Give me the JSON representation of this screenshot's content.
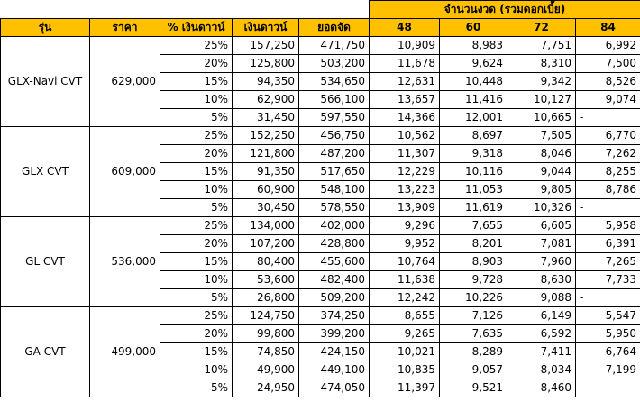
{
  "header": {
    "group_title": "จำนวนงวด (รวมดอกเบี้ย)",
    "columns": [
      "รุ่น",
      "ราคา",
      "% เงินดาวน์",
      "เงินดาวน์",
      "ยอดจัด",
      "48",
      "60",
      "72",
      "84"
    ]
  },
  "models": [
    {
      "name": "GLX-Navi CVT",
      "price": "629,000",
      "rows": [
        {
          "pct": "25%",
          "down": "157,250",
          "fin": "471,750",
          "m48": "10,909",
          "m60": "8,983",
          "m72": "7,751",
          "m84": "6,992"
        },
        {
          "pct": "20%",
          "down": "125,800",
          "fin": "503,200",
          "m48": "11,678",
          "m60": "9,624",
          "m72": "8,310",
          "m84": "7,500"
        },
        {
          "pct": "15%",
          "down": "94,350",
          "fin": "534,650",
          "m48": "12,631",
          "m60": "10,448",
          "m72": "9,342",
          "m84": "8,526"
        },
        {
          "pct": "10%",
          "down": "62,900",
          "fin": "566,100",
          "m48": "13,657",
          "m60": "11,416",
          "m72": "10,127",
          "m84": "9,074"
        },
        {
          "pct": "5%",
          "down": "31,450",
          "fin": "597,550",
          "m48": "14,366",
          "m60": "12,001",
          "m72": "10,665",
          "m84": "-"
        }
      ]
    },
    {
      "name": "GLX CVT",
      "price": "609,000",
      "rows": [
        {
          "pct": "25%",
          "down": "152,250",
          "fin": "456,750",
          "m48": "10,562",
          "m60": "8,697",
          "m72": "7,505",
          "m84": "6,770"
        },
        {
          "pct": "20%",
          "down": "121,800",
          "fin": "487,200",
          "m48": "11,307",
          "m60": "9,318",
          "m72": "8,046",
          "m84": "7,262"
        },
        {
          "pct": "15%",
          "down": "91,350",
          "fin": "517,650",
          "m48": "12,229",
          "m60": "10,116",
          "m72": "9,044",
          "m84": "8,255"
        },
        {
          "pct": "10%",
          "down": "60,900",
          "fin": "548,100",
          "m48": "13,223",
          "m60": "11,053",
          "m72": "9,805",
          "m84": "8,786"
        },
        {
          "pct": "5%",
          "down": "30,450",
          "fin": "578,550",
          "m48": "13,909",
          "m60": "11,619",
          "m72": "10,326",
          "m84": "-"
        }
      ]
    },
    {
      "name": "GL CVT",
      "price": "536,000",
      "rows": [
        {
          "pct": "25%",
          "down": "134,000",
          "fin": "402,000",
          "m48": "9,296",
          "m60": "7,655",
          "m72": "6,605",
          "m84": "5,958"
        },
        {
          "pct": "20%",
          "down": "107,200",
          "fin": "428,800",
          "m48": "9,952",
          "m60": "8,201",
          "m72": "7,081",
          "m84": "6,391"
        },
        {
          "pct": "15%",
          "down": "80,400",
          "fin": "455,600",
          "m48": "10,764",
          "m60": "8,903",
          "m72": "7,960",
          "m84": "7,265"
        },
        {
          "pct": "10%",
          "down": "53,600",
          "fin": "482,400",
          "m48": "11,638",
          "m60": "9,728",
          "m72": "8,630",
          "m84": "7,733"
        },
        {
          "pct": "5%",
          "down": "26,800",
          "fin": "509,200",
          "m48": "12,242",
          "m60": "10,226",
          "m72": "9,088",
          "m84": "-"
        }
      ]
    },
    {
      "name": "GA CVT",
      "price": "499,000",
      "rows": [
        {
          "pct": "25%",
          "down": "124,750",
          "fin": "374,250",
          "m48": "8,655",
          "m60": "7,126",
          "m72": "6,149",
          "m84": "5,547"
        },
        {
          "pct": "20%",
          "down": "99,800",
          "fin": "399,200",
          "m48": "9,265",
          "m60": "7,635",
          "m72": "6,592",
          "m84": "5,950"
        },
        {
          "pct": "15%",
          "down": "74,850",
          "fin": "424,150",
          "m48": "10,021",
          "m60": "8,289",
          "m72": "7,411",
          "m84": "6,764"
        },
        {
          "pct": "10%",
          "down": "49,900",
          "fin": "449,100",
          "m48": "10,835",
          "m60": "9,057",
          "m72": "8,034",
          "m84": "7,199"
        },
        {
          "pct": "5%",
          "down": "24,950",
          "fin": "474,050",
          "m48": "11,397",
          "m60": "9,521",
          "m72": "8,460",
          "m84": "-"
        }
      ]
    }
  ]
}
